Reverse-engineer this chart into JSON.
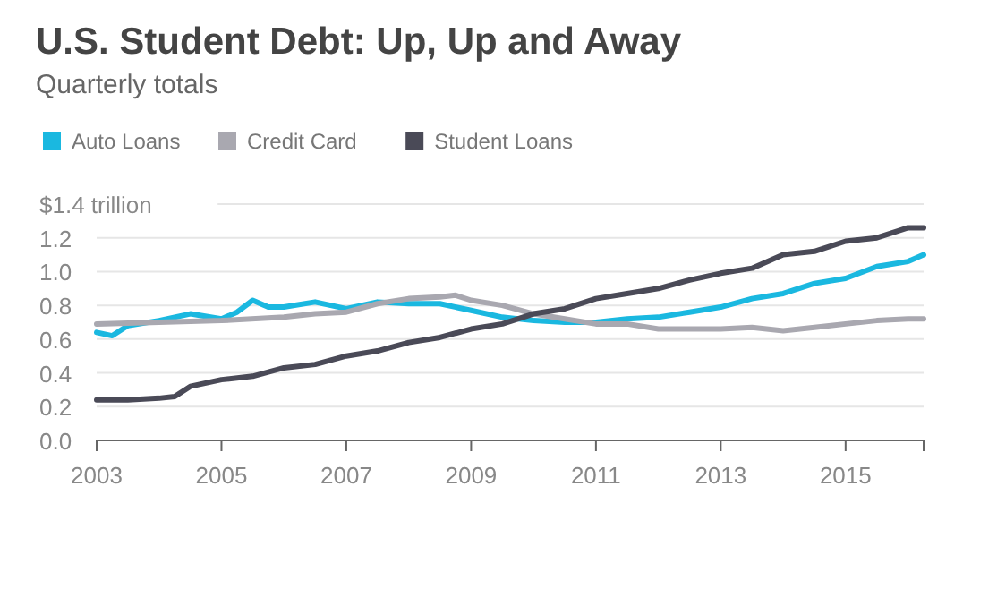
{
  "chart_data": {
    "type": "line",
    "title": "U.S. Student Debt: Up, Up and Away",
    "subtitle": "Quarterly totals",
    "xlim": [
      2003,
      2016.25
    ],
    "xticks": [
      2003,
      2005,
      2007,
      2009,
      2011,
      2013,
      2015
    ],
    "ylim": [
      0,
      1.4
    ],
    "yticks": [
      {
        "value": 0,
        "label": "0.0"
      },
      0.2,
      0.4,
      0.6,
      0.8,
      {
        "value": 1,
        "label": "1.0"
      },
      1.2,
      {
        "value": 1.4,
        "label": "$1.4 trillion"
      }
    ],
    "grid": "y",
    "legend": "top left",
    "line_style": "solid",
    "series": [
      {
        "name": "Auto Loans",
        "color": "#1ab8e0",
        "x": [
          2003,
          2003.25,
          2003.5,
          2004,
          2004.5,
          2005,
          2005.25,
          2005.5,
          2005.75,
          2006,
          2006.5,
          2007,
          2007.5,
          2008,
          2008.5,
          2009,
          2009.5,
          2010,
          2010.5,
          2011,
          2011.5,
          2012,
          2012.5,
          2013,
          2013.5,
          2014,
          2014.5,
          2015,
          2015.5,
          2016,
          2016.25
        ],
        "values": [
          0.64,
          0.62,
          0.68,
          0.71,
          0.75,
          0.72,
          0.76,
          0.83,
          0.79,
          0.79,
          0.82,
          0.78,
          0.82,
          0.81,
          0.81,
          0.77,
          0.73,
          0.71,
          0.7,
          0.7,
          0.72,
          0.73,
          0.76,
          0.79,
          0.84,
          0.87,
          0.93,
          0.96,
          1.03,
          1.06,
          1.1
        ]
      },
      {
        "name": "Credit Card",
        "color": "#a9a8b0",
        "x": [
          2003,
          2004,
          2005,
          2006,
          2006.5,
          2007,
          2007.5,
          2008,
          2008.5,
          2008.75,
          2009,
          2009.5,
          2010,
          2010.5,
          2011,
          2011.5,
          2012,
          2012.5,
          2013,
          2013.5,
          2014,
          2014.5,
          2015,
          2015.5,
          2016,
          2016.25
        ],
        "values": [
          0.69,
          0.7,
          0.71,
          0.73,
          0.75,
          0.76,
          0.81,
          0.84,
          0.85,
          0.86,
          0.83,
          0.8,
          0.75,
          0.72,
          0.69,
          0.69,
          0.66,
          0.66,
          0.66,
          0.67,
          0.65,
          0.67,
          0.69,
          0.71,
          0.72,
          0.72
        ]
      },
      {
        "name": "Student Loans",
        "color": "#4a4a57",
        "x": [
          2003,
          2003.5,
          2004,
          2004.25,
          2004.5,
          2005,
          2005.5,
          2006,
          2006.5,
          2007,
          2007.5,
          2008,
          2008.5,
          2009,
          2009.5,
          2010,
          2010.5,
          2011,
          2011.5,
          2012,
          2012.5,
          2013,
          2013.5,
          2014,
          2014.5,
          2015,
          2015.5,
          2016,
          2016.25
        ],
        "values": [
          0.24,
          0.24,
          0.25,
          0.26,
          0.32,
          0.36,
          0.38,
          0.43,
          0.45,
          0.5,
          0.53,
          0.58,
          0.61,
          0.66,
          0.69,
          0.75,
          0.78,
          0.84,
          0.87,
          0.9,
          0.95,
          0.99,
          1.02,
          1.1,
          1.12,
          1.18,
          1.2,
          1.26,
          1.26
        ]
      }
    ]
  }
}
